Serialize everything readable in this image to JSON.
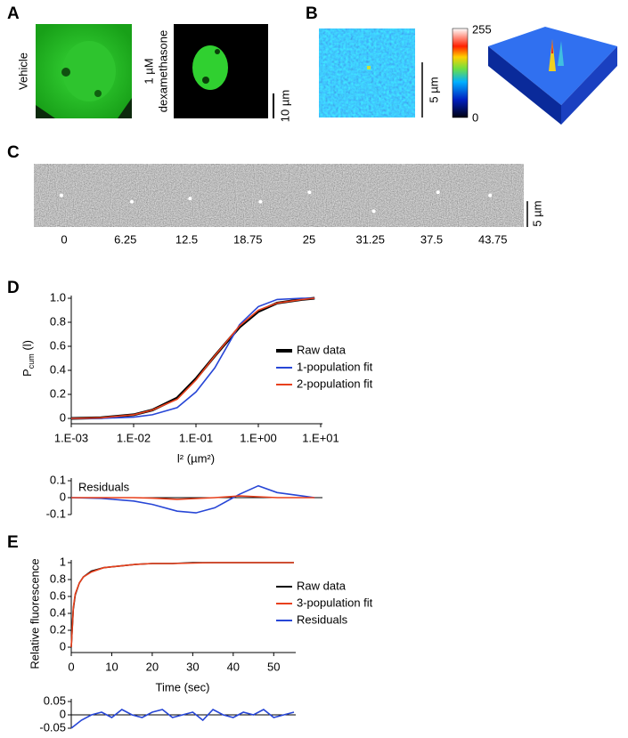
{
  "panel_labels": [
    "A",
    "B",
    "C",
    "D",
    "E"
  ],
  "panel_a": {
    "left_label": "Vehicle",
    "right_label": [
      "1 µM",
      "dexamethasone"
    ],
    "scale_label": "10 µm"
  },
  "panel_b": {
    "scale_label": "5 µm",
    "colorbar_labels": [
      "255",
      "0"
    ]
  },
  "panel_c": {
    "frame_times": [
      0,
      6.25,
      12.5,
      18.75,
      25,
      31.25,
      37.5,
      43.75
    ],
    "scale_label": "5 µm"
  },
  "chart_data": [
    {
      "type": "line",
      "xlog": true,
      "x": [
        0.001,
        0.003,
        0.01,
        0.02,
        0.05,
        0.1,
        0.2,
        0.5,
        1,
        2,
        5,
        8
      ],
      "series": [
        {
          "name": "Raw data",
          "color": "#000000",
          "values": [
            0,
            0.005,
            0.03,
            0.07,
            0.17,
            0.33,
            0.52,
            0.76,
            0.89,
            0.96,
            0.99,
            1.0
          ]
        },
        {
          "name": "1-population fit",
          "color": "#2746d6",
          "values": [
            0,
            0.001,
            0.01,
            0.03,
            0.09,
            0.22,
            0.42,
            0.78,
            0.93,
            0.99,
            1.0,
            1.0
          ]
        },
        {
          "name": "2-population fit",
          "color": "#e8401c",
          "values": [
            0,
            0.005,
            0.03,
            0.07,
            0.16,
            0.32,
            0.52,
            0.77,
            0.9,
            0.96,
            0.99,
            1.0
          ]
        }
      ],
      "xlim": [
        0.001,
        10
      ],
      "xticks": [
        {
          "value": 0.001,
          "label": "1.E-03"
        },
        {
          "value": 0.01,
          "label": "1.E-02"
        },
        {
          "value": 0.1,
          "label": "1.E-01"
        },
        {
          "value": 1,
          "label": "1.E+00"
        },
        {
          "value": 10,
          "label": "1.E+01"
        }
      ],
      "ylim": [
        0,
        1
      ],
      "yticks": [
        0,
        0.2,
        0.4,
        0.6,
        0.8,
        {
          "value": 1,
          "label": "1.0"
        }
      ],
      "xlabel": "l² (µm²)",
      "ylabel": {
        "main": "P",
        "sub": "cum",
        "rest": " (l)"
      }
    },
    {
      "type": "line",
      "xlog": true,
      "x": [
        0.001,
        0.003,
        0.01,
        0.02,
        0.05,
        0.1,
        0.2,
        0.5,
        1,
        2,
        5,
        8
      ],
      "series": [
        {
          "name": "1-population fit",
          "color": "#2746d6",
          "values": [
            0,
            -0.004,
            -0.02,
            -0.04,
            -0.08,
            -0.09,
            -0.06,
            0.02,
            0.07,
            0.03,
            0.01,
            0
          ]
        },
        {
          "name": "2-population fit",
          "color": "#e8401c",
          "values": [
            0,
            0,
            0,
            -0.003,
            -0.01,
            -0.005,
            0,
            0.01,
            0.005,
            0,
            0,
            0
          ]
        }
      ],
      "xlim": [
        0.001,
        10
      ],
      "ylim": [
        -0.1,
        0.1
      ],
      "yticks": [
        -0.1,
        0,
        0.1
      ],
      "annotation": "Residuals"
    },
    {
      "type": "line",
      "x": [
        0,
        0.5,
        1,
        2,
        3,
        5,
        8,
        12,
        16,
        20,
        25,
        30,
        35,
        40,
        45,
        50,
        55
      ],
      "series": [
        {
          "name": "Raw data",
          "color": "#000000",
          "values": [
            0,
            0.45,
            0.62,
            0.76,
            0.83,
            0.9,
            0.94,
            0.96,
            0.98,
            0.99,
            0.99,
            1.0,
            1.0,
            1.0,
            1.0,
            1.0,
            1.0
          ]
        },
        {
          "name": "3-population fit",
          "color": "#e8401c",
          "values": [
            0,
            0.47,
            0.63,
            0.76,
            0.83,
            0.89,
            0.94,
            0.96,
            0.98,
            0.99,
            0.99,
            0.995,
            1.0,
            1.0,
            1.0,
            1.0,
            1.0
          ]
        }
      ],
      "xlim": [
        0,
        55
      ],
      "xticks": [
        0,
        10,
        20,
        30,
        40,
        50
      ],
      "ylim": [
        0,
        1
      ],
      "yticks": [
        0,
        0.2,
        0.4,
        0.6,
        0.8,
        1
      ],
      "xlabel": "Time (sec)",
      "ylabel": "Relative fluorescence"
    },
    {
      "type": "line",
      "x": [
        0,
        2.5,
        5,
        7.5,
        10,
        12.5,
        15,
        17.5,
        20,
        22.5,
        25,
        27.5,
        30,
        32.5,
        35,
        37.5,
        40,
        42.5,
        45,
        47.5,
        50,
        52.5,
        55
      ],
      "series": [
        {
          "name": "Residuals",
          "color": "#2746d6",
          "values": [
            -0.05,
            -0.02,
            0.0,
            0.01,
            -0.01,
            0.02,
            0.0,
            -0.01,
            0.01,
            0.02,
            -0.01,
            0.0,
            0.01,
            -0.02,
            0.02,
            0.0,
            -0.01,
            0.01,
            0.0,
            0.02,
            -0.01,
            0.0,
            0.01
          ]
        }
      ],
      "xlim": [
        0,
        55
      ],
      "ylim": [
        -0.05,
        0.05
      ],
      "yticks": [
        -0.05,
        0,
        0.05
      ]
    }
  ]
}
